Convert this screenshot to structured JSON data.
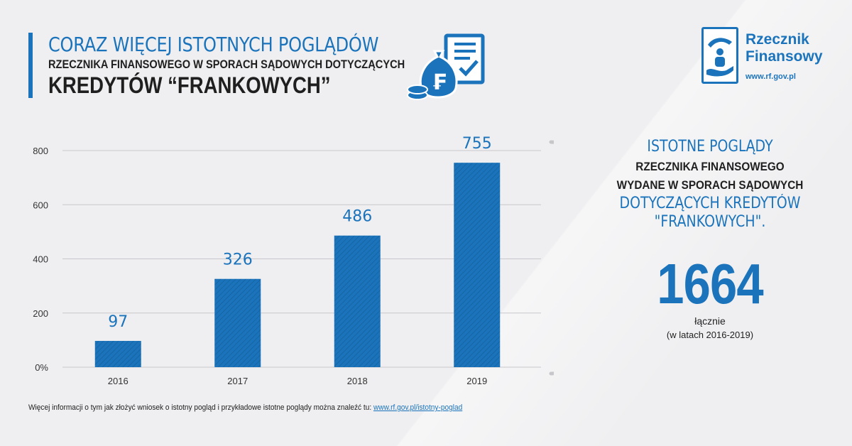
{
  "header": {
    "line1": "CORAZ WIĘCEJ ISTOTNYCH POGLĄDÓW",
    "line2": "RZECZNIKA FINANSOWEGO W SPORACH SĄDOWYCH DOTYCZĄCYCH",
    "line3": "KREDYTÓW “FRANKOWYCH”"
  },
  "logo": {
    "name_line1": "Rzecznik",
    "name_line2": "Finansowy",
    "url": "www.rf.gov.pl"
  },
  "chart_data": {
    "type": "bar",
    "categories": [
      "2016",
      "2017",
      "2018",
      "2019"
    ],
    "values": [
      97,
      326,
      486,
      755
    ],
    "value_labels": [
      "97",
      "326",
      "486",
      "755"
    ],
    "ylim": [
      0,
      800
    ],
    "yticks": [
      0,
      200,
      400,
      600,
      800
    ],
    "ytick_labels": [
      "0%",
      "200",
      "400",
      "600",
      "800"
    ],
    "grid": true,
    "bar_color": "#1b74bb"
  },
  "summary": {
    "line1": "ISTOTNE POGLĄDY",
    "line2": "RZECZNIKA FINANSOWEGO",
    "line3": "WYDANE W SPORACH SĄDOWYCH",
    "line4": "DOTYCZĄCYCH KREDYTÓW",
    "line5": "\"FRANKOWYCH\".",
    "total": "1664",
    "total_label": "łącznie",
    "total_period": "(w latach 2016-2019)"
  },
  "footer": {
    "text": "Więcej informacji o tym jak złożyć wniosek o istotny pogląd i przykładowe istotne poglądy można znaleźć tu: ",
    "link": "www.rf.gov.pl/istotny-poglad"
  },
  "colors": {
    "accent": "#1b74bb",
    "background": "#efeff1"
  }
}
